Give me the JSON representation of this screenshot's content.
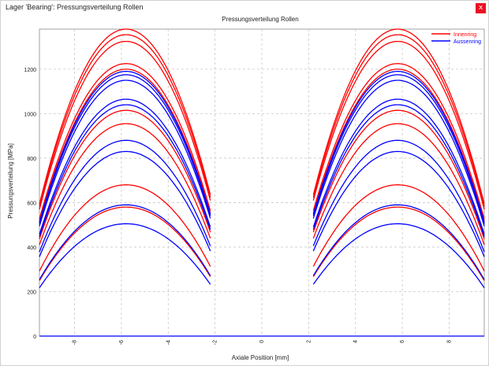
{
  "window": {
    "title": "Lager 'Bearing': Pressungsverteilung Rollen",
    "close_glyph": "x"
  },
  "colors": {
    "innenring": "#ff0000",
    "aussenring": "#0000ff",
    "grid": "#c8c8c8",
    "close": "#e81123"
  },
  "icons": {
    "close": "close-icon"
  },
  "chart_data": {
    "type": "line",
    "title": "Pressungsverteilung Rollen",
    "xlabel": "Axiale Position [mm]",
    "ylabel": "Pressungsverteilung [MPa]",
    "xlim": [
      -9.5,
      9.5
    ],
    "ylim": [
      0,
      1380
    ],
    "xticks": [
      -8,
      -6,
      -4,
      -2,
      0,
      2,
      4,
      6,
      8
    ],
    "xtick_labels": [
      "-8",
      "-6",
      "-4",
      "-2",
      "0",
      "2",
      "4",
      "6",
      "8"
    ],
    "yticks": [
      0,
      200,
      400,
      600,
      800,
      1000,
      1200
    ],
    "ytick_labels": [
      "0",
      "200",
      "400",
      "600",
      "800",
      "1000",
      "1200"
    ],
    "grid": true,
    "legend_position": "top-right",
    "legend": [
      {
        "name": "Innenring",
        "color": "#ff0000"
      },
      {
        "name": "Aussenring",
        "color": "#0000ff"
      }
    ],
    "roller_segments": [
      {
        "x_min": -9.5,
        "x_max": -2.2,
        "apex_x": -5.8
      },
      {
        "x_min": 2.2,
        "x_max": 9.5,
        "apex_x": 5.8
      }
    ],
    "series": [
      {
        "name": "Innenring",
        "color": "#ff0000",
        "peaks": [
          1380,
          1355,
          1325,
          1225,
          1200,
          1015,
          955,
          680,
          580
        ]
      },
      {
        "name": "Aussenring",
        "color": "#0000ff",
        "peaks": [
          1190,
          1175,
          1150,
          1065,
          1040,
          880,
          830,
          590,
          505
        ]
      }
    ]
  }
}
